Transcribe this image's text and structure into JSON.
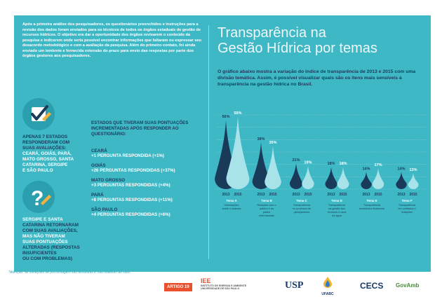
{
  "intro": "Após a primeira análise dos pesquisadores, os questionários preenchidos e instruções para a revisão dos dados foram enviados para os técnicos de todos os órgãos estaduais de gestão de recursos hídricos. O objetivo era dar a oportunidade dos órgãos revisarem o conteúdo da pesquisa e indicarem onde seria possível encontrar informações que faltaram ou expressar seu desacordo metodológico e com a avaliação da pesquisa. Além do primeiro contato, foi ainda enviado um lembrete e fornecida extensão do prazo para envio das respostas por parte dos órgãos gestores aos pesquisadores.",
  "block1": {
    "line1": "Apenas 7 estados",
    "line2": "responderam com",
    "line3": "suas avaliações:",
    "line4": "Ceará, Goiás, Pará,",
    "line5": "Mato Grosso, Santa",
    "line6": "Catarina, Sergipe",
    "line7": "e São Paulo"
  },
  "block2": {
    "line1": "Sergipe e Santa",
    "line2": "Catarina retornaram",
    "line3": "com suas avaliações,",
    "line4": "mas não tiveram",
    "line5": "suas pontuações",
    "line6": "alteradas (respostas",
    "line7": "insuficientes",
    "line8": "ou com problemas)"
  },
  "states_title": "Estados que tiveram suas pontuações incrementadas após responder ao questionário:",
  "states": [
    {
      "name": "Ceará",
      "value": "+1 pergunta respondida (+1%)"
    },
    {
      "name": "Goiás",
      "value": "+26 perguntas respondidas (+37%)"
    },
    {
      "name": "Mato Grosso",
      "value": "+3 perguntas respondidas (+4%)"
    },
    {
      "name": "Pará",
      "value": "+8 perguntas respondidas (+11%)"
    },
    {
      "name": "São Paulo",
      "value": "+4 perguntas respondidas (+6%)"
    }
  ],
  "footnote": "*Atenção: as variações de porcentagem são absolutas e não relativas ao valor.",
  "title_line1": "Transparência na",
  "title_line2": "Gestão Hídrica por temas",
  "lead": "O gráfico abaixo mostra a variação do índice de transparência de 2013 e 2015 com uma divisão temática. Assim, é possível visualizar quais são os itens mais sensíveis à transparência na gestão hídrica no Brasil.",
  "logos": {
    "artigo": "ARTIGO 19",
    "iee": "IEE",
    "iee_sub1": "INSTITUTO DE ENERGIA E AMBIENTE",
    "iee_sub2": "UNIVERSIDADE DE SÃO PAULO",
    "usp": "USP",
    "ufabc": "UFABC",
    "cecs": "CECS",
    "govamb": "GovAmb"
  },
  "colors": {
    "panel": "#3fb8c6",
    "dark_navy": "#1a3a5a",
    "drop_2013": "#1a3a5a",
    "drop_2015": "#a9e3ea",
    "title_text": "#eef6f7"
  },
  "chart_data": {
    "type": "bar",
    "categories": [
      "Tema A",
      "Tema B",
      "Tema C",
      "Tema D",
      "Tema E",
      "Tema F"
    ],
    "category_descriptions": [
      "Informações sobre o sistema",
      "Relações com o público e as partes interessadas",
      "Transparência no processo de planejamento",
      "Transparência na gestão dos recursos e usos da água",
      "Transparência econômico-financeira",
      "Transparência em contratos e licitações"
    ],
    "x_labels": [
      "2013",
      "2015"
    ],
    "series": [
      {
        "name": "2013",
        "values": [
          56,
          38,
          21,
          18,
          14,
          14
        ]
      },
      {
        "name": "2015",
        "values": [
          59,
          35,
          19,
          18,
          17,
          13
        ]
      }
    ],
    "value_labels": [
      [
        "56%",
        "59%"
      ],
      [
        "38%",
        "35%"
      ],
      [
        "21%",
        "19%"
      ],
      [
        "18%",
        "18%"
      ],
      [
        "14%",
        "17%"
      ],
      [
        "14%",
        "13%"
      ]
    ],
    "ylim": [
      0,
      60
    ],
    "grid": true
  }
}
